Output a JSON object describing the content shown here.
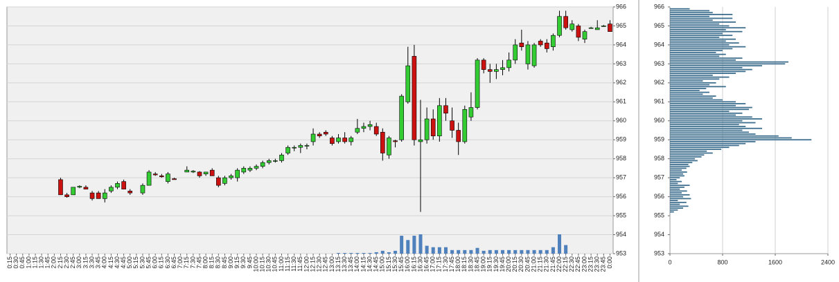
{
  "chart_data": [
    {
      "type": "candlestick",
      "categories": [
        "0:15",
        "0:30",
        "0:45",
        "1:00",
        "1:15",
        "1:30",
        "1:45",
        "2:00",
        "2:15",
        "2:30",
        "2:45",
        "3:00",
        "3:15",
        "3:30",
        "3:45",
        "4:00",
        "4:15",
        "4:30",
        "4:45",
        "5:00",
        "5:15",
        "5:30",
        "5:45",
        "6:00",
        "6:15",
        "6:30",
        "6:45",
        "7:00",
        "7:15",
        "7:30",
        "7:45",
        "8:00",
        "8:15",
        "8:30",
        "8:45",
        "9:00",
        "9:15",
        "9:30",
        "9:45",
        "10:00",
        "10:15",
        "10:30",
        "10:45",
        "11:00",
        "11:15",
        "11:30",
        "11:45",
        "12:00",
        "12:15",
        "12:30",
        "12:45",
        "13:00",
        "13:15",
        "13:30",
        "13:45",
        "14:00",
        "14:15",
        "14:30",
        "14:45",
        "15:00",
        "15:15",
        "15:30",
        "15:45",
        "16:00",
        "16:15",
        "16:30",
        "16:45",
        "17:00",
        "17:15",
        "17:30",
        "17:45",
        "18:00",
        "18:15",
        "18:30",
        "18:45",
        "19:00",
        "19:15",
        "19:30",
        "19:45",
        "20:00",
        "20:15",
        "20:30",
        "20:45",
        "21:00",
        "21:15",
        "21:30",
        "21:45",
        "22:00",
        "22:15",
        "22:30",
        "22:45",
        "23:00",
        "23:15",
        "23:30",
        "23:45",
        "0:00"
      ],
      "open": [
        null,
        null,
        null,
        null,
        null,
        null,
        null,
        null,
        956.9,
        956.1,
        956.1,
        956.5,
        956.5,
        956.2,
        956.2,
        955.9,
        956.3,
        956.5,
        956.8,
        956.3,
        null,
        956.2,
        956.6,
        957.2,
        957.1,
        956.8,
        956.95,
        null,
        957.3,
        957.3,
        957.3,
        957.2,
        957.4,
        957.0,
        956.7,
        957.0,
        957.0,
        957.3,
        957.4,
        957.5,
        957.6,
        957.8,
        957.9,
        957.9,
        958.3,
        958.6,
        958.6,
        958.7,
        958.9,
        959.3,
        959.4,
        959.1,
        958.9,
        959.1,
        958.9,
        959.4,
        959.6,
        959.7,
        959.7,
        959.4,
        958.2,
        958.95,
        959.0,
        961.0,
        963.4,
        958.9,
        959.0,
        960.1,
        959.2,
        960.8,
        960.0,
        959.5,
        958.9,
        960.2,
        960.7,
        963.2,
        962.7,
        962.6,
        962.7,
        962.8,
        963.2,
        964.1,
        963.0,
        962.9,
        964.2,
        964.1,
        963.9,
        964.5,
        965.5,
        964.8,
        965.0,
        964.3,
        964.9,
        964.8,
        965.0,
        965.1
      ],
      "high": [
        null,
        null,
        null,
        null,
        null,
        null,
        null,
        null,
        957.0,
        956.2,
        956.5,
        956.6,
        956.6,
        956.3,
        956.3,
        956.4,
        956.6,
        956.8,
        956.9,
        956.4,
        null,
        956.7,
        957.4,
        957.3,
        957.2,
        957.3,
        957.0,
        null,
        957.6,
        957.4,
        957.35,
        957.3,
        957.5,
        957.1,
        957.1,
        957.2,
        957.5,
        957.6,
        957.6,
        957.7,
        957.9,
        958.0,
        958.0,
        958.3,
        958.7,
        958.7,
        958.8,
        958.8,
        959.6,
        959.4,
        959.5,
        959.2,
        959.3,
        959.4,
        959.2,
        960.1,
        959.9,
        960.0,
        959.9,
        959.6,
        959.2,
        959.0,
        961.4,
        963.9,
        964.0,
        961.1,
        960.7,
        960.6,
        961.2,
        961.2,
        960.7,
        959.9,
        960.8,
        961.5,
        963.3,
        963.3,
        963.0,
        963.0,
        963.2,
        963.6,
        964.3,
        964.8,
        964.2,
        964.1,
        964.3,
        964.3,
        964.6,
        965.8,
        965.8,
        965.3,
        965.1,
        964.8,
        964.95,
        965.3,
        965.05,
        965.3
      ],
      "low": [
        null,
        null,
        null,
        null,
        null,
        null,
        null,
        null,
        956.1,
        955.95,
        956.1,
        956.45,
        956.4,
        955.8,
        955.9,
        955.7,
        956.2,
        956.4,
        956.4,
        956.1,
        null,
        956.1,
        956.6,
        957.1,
        957.0,
        956.7,
        956.9,
        null,
        957.3,
        957.25,
        957.0,
        957.1,
        957.1,
        956.5,
        956.6,
        956.9,
        956.8,
        957.2,
        957.3,
        957.4,
        957.5,
        957.7,
        957.8,
        957.8,
        958.2,
        958.4,
        958.3,
        958.5,
        958.7,
        959.1,
        959.2,
        958.7,
        958.8,
        958.8,
        958.7,
        959.3,
        959.4,
        959.5,
        959.2,
        957.9,
        958.0,
        958.6,
        958.9,
        960.9,
        958.7,
        955.2,
        958.8,
        959.0,
        958.9,
        960.0,
        959.1,
        958.2,
        958.8,
        960.0,
        960.6,
        962.5,
        962.0,
        962.2,
        962.4,
        962.6,
        963.0,
        963.7,
        962.7,
        962.8,
        963.9,
        963.6,
        963.7,
        964.4,
        964.8,
        964.7,
        964.2,
        964.1,
        964.85,
        964.8,
        964.95,
        964.7
      ],
      "close": [
        null,
        null,
        null,
        null,
        null,
        null,
        null,
        null,
        956.1,
        956.0,
        956.5,
        956.55,
        956.4,
        955.9,
        955.9,
        956.2,
        956.5,
        956.7,
        956.4,
        956.2,
        null,
        956.6,
        957.3,
        957.15,
        957.05,
        957.2,
        956.9,
        null,
        957.4,
        957.35,
        957.1,
        957.3,
        957.1,
        956.6,
        957.0,
        957.1,
        957.4,
        957.5,
        957.5,
        957.6,
        957.8,
        957.9,
        957.9,
        958.2,
        958.6,
        958.6,
        958.7,
        958.7,
        959.3,
        959.2,
        959.3,
        958.8,
        959.1,
        958.9,
        959.1,
        959.6,
        959.7,
        959.8,
        959.3,
        958.3,
        959.1,
        958.9,
        961.3,
        962.9,
        959.0,
        959.0,
        960.1,
        959.2,
        960.8,
        960.4,
        959.5,
        958.9,
        960.6,
        960.7,
        963.2,
        962.7,
        962.6,
        962.7,
        962.8,
        963.2,
        964.0,
        963.9,
        964.0,
        964.0,
        964.0,
        963.8,
        964.5,
        965.5,
        964.9,
        965.1,
        964.4,
        964.7,
        964.9,
        964.9,
        965.0,
        964.7
      ],
      "volume": [
        null,
        null,
        null,
        null,
        null,
        null,
        null,
        null,
        null,
        null,
        null,
        null,
        null,
        null,
        null,
        null,
        null,
        null,
        null,
        null,
        null,
        null,
        null,
        null,
        null,
        null,
        null,
        null,
        null,
        null,
        null,
        null,
        null,
        null,
        null,
        null,
        null,
        null,
        null,
        null,
        null,
        null,
        null,
        null,
        null,
        null,
        null,
        null,
        null,
        null,
        null,
        null,
        50,
        50,
        50,
        50,
        50,
        50,
        100,
        200,
        100,
        200,
        1250,
        950,
        1250,
        1350,
        550,
        450,
        450,
        450,
        250,
        250,
        250,
        250,
        400,
        200,
        250,
        250,
        250,
        250,
        250,
        250,
        250,
        250,
        250,
        250,
        450,
        1350,
        600,
        null,
        null,
        null,
        null,
        null,
        null,
        null
      ],
      "ylim": [
        953,
        966
      ],
      "yticks": [
        953,
        954,
        955,
        956,
        957,
        958,
        959,
        960,
        961,
        962,
        963,
        964,
        965,
        966
      ],
      "grid": true,
      "up_color": "#33cc33",
      "down_color": "#cc1111",
      "volume_color": "#4f81bd"
    },
    {
      "type": "hbar",
      "y": [
        955.2,
        955.3,
        955.4,
        955.5,
        955.6,
        955.7,
        955.8,
        955.9,
        956.0,
        956.1,
        956.2,
        956.3,
        956.4,
        956.5,
        956.6,
        956.7,
        956.8,
        956.9,
        957.0,
        957.1,
        957.2,
        957.3,
        957.4,
        957.5,
        957.6,
        957.7,
        957.8,
        957.9,
        958.0,
        958.1,
        958.2,
        958.3,
        958.4,
        958.5,
        958.6,
        958.7,
        958.8,
        958.9,
        959.0,
        959.1,
        959.2,
        959.3,
        959.4,
        959.5,
        959.6,
        959.7,
        959.8,
        959.9,
        960.0,
        960.1,
        960.2,
        960.3,
        960.4,
        960.5,
        960.6,
        960.7,
        960.8,
        960.9,
        961.0,
        961.1,
        961.2,
        961.3,
        961.4,
        961.5,
        961.6,
        961.7,
        961.8,
        961.9,
        962.0,
        962.1,
        962.2,
        962.3,
        962.4,
        962.5,
        962.6,
        962.7,
        962.8,
        962.9,
        963.0,
        963.1,
        963.2,
        963.3,
        963.4,
        963.5,
        963.6,
        963.7,
        963.8,
        963.9,
        964.0,
        964.1,
        964.2,
        964.3,
        964.4,
        964.5,
        964.6,
        964.7,
        964.8,
        964.9,
        965.0,
        965.1,
        965.2,
        965.3,
        965.4,
        965.5,
        965.6,
        965.7,
        965.8,
        965.9
      ],
      "values": [
        60,
        120,
        200,
        280,
        150,
        250,
        120,
        320,
        200,
        300,
        180,
        260,
        150,
        220,
        300,
        120,
        180,
        100,
        150,
        220,
        200,
        260,
        180,
        250,
        300,
        280,
        340,
        420,
        380,
        480,
        520,
        650,
        560,
        780,
        900,
        1050,
        1150,
        1300,
        2150,
        1850,
        1650,
        1300,
        1200,
        1100,
        1400,
        1150,
        1050,
        1300,
        1100,
        1400,
        1250,
        1000,
        1100,
        900,
        1200,
        1250,
        1000,
        1150,
        1000,
        800,
        650,
        700,
        500,
        600,
        450,
        550,
        850,
        600,
        700,
        500,
        750,
        900,
        650,
        1000,
        1150,
        1250,
        1100,
        1400,
        1750,
        1800,
        1000,
        1100,
        750,
        850,
        700,
        800,
        950,
        1150,
        900,
        1050,
        850,
        1000,
        750,
        950,
        800,
        1100,
        850,
        1150,
        900,
        750,
        1000,
        650,
        950,
        600,
        950,
        650,
        600,
        300
      ],
      "xlim": [
        0,
        2400
      ],
      "xticks": [
        0,
        800,
        1600,
        2400
      ],
      "ylim": [
        953,
        966
      ],
      "yticks": [
        953,
        954,
        955,
        956,
        957,
        958,
        959,
        960,
        961,
        962,
        963,
        964,
        965,
        966
      ],
      "grid": true,
      "color": "#3e6f8e"
    }
  ]
}
